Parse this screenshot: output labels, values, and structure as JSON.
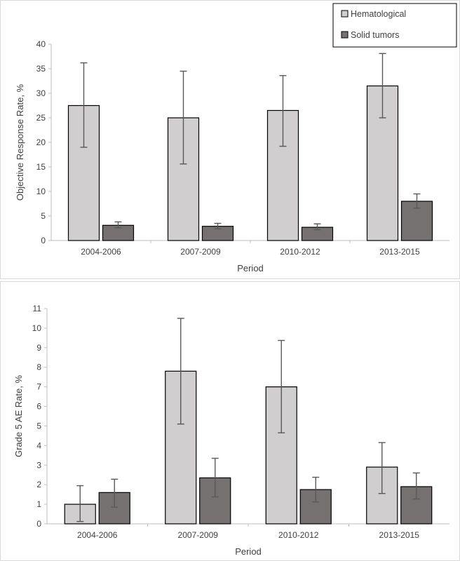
{
  "colors": {
    "hematological": "#d0cece",
    "solid_tumors": "#767171",
    "error_bar": "#595959",
    "bar_edge": "#000000",
    "axis": "#bfbfbf"
  },
  "legend": {
    "items": [
      "Hematological",
      "Solid tumors"
    ]
  },
  "chart_data": [
    {
      "type": "bar",
      "title": "",
      "xlabel": "Period",
      "ylabel": "Objective Response Rate, %",
      "ylim": [
        0,
        40
      ],
      "yticks": [
        0,
        5,
        10,
        15,
        20,
        25,
        30,
        35,
        40
      ],
      "categories": [
        "2004-2006",
        "2007-2009",
        "2010-2012",
        "2013-2015"
      ],
      "series": [
        {
          "name": "Hematological",
          "values": [
            27.5,
            25.0,
            26.5,
            31.5
          ],
          "err_low": [
            19.0,
            15.6,
            19.2,
            25.0
          ],
          "err_high": [
            36.2,
            34.5,
            33.6,
            38.1
          ]
        },
        {
          "name": "Solid tumors",
          "values": [
            3.1,
            2.9,
            2.7,
            8.0
          ],
          "err_low": [
            2.6,
            2.4,
            2.2,
            6.6
          ],
          "err_high": [
            3.8,
            3.5,
            3.4,
            9.5
          ]
        }
      ],
      "legend": "top-right",
      "grid": false
    },
    {
      "type": "bar",
      "title": "",
      "xlabel": "Period",
      "ylabel": "Grade 5 AE Rate, %",
      "ylim": [
        0,
        11
      ],
      "yticks": [
        0,
        1,
        2,
        3,
        4,
        5,
        6,
        7,
        8,
        9,
        10,
        11
      ],
      "categories": [
        "2004-2006",
        "2007-2009",
        "2010-2012",
        "2013-2015"
      ],
      "series": [
        {
          "name": "Hematological",
          "values": [
            1.0,
            7.8,
            7.0,
            2.9
          ],
          "err_low": [
            0.12,
            5.1,
            4.65,
            1.55
          ],
          "err_high": [
            1.95,
            10.5,
            9.37,
            4.15
          ]
        },
        {
          "name": "Solid tumors",
          "values": [
            1.6,
            2.35,
            1.75,
            1.9
          ],
          "err_low": [
            0.85,
            1.38,
            1.12,
            1.27
          ],
          "err_high": [
            2.28,
            3.35,
            2.38,
            2.6
          ]
        }
      ],
      "grid": false
    }
  ]
}
